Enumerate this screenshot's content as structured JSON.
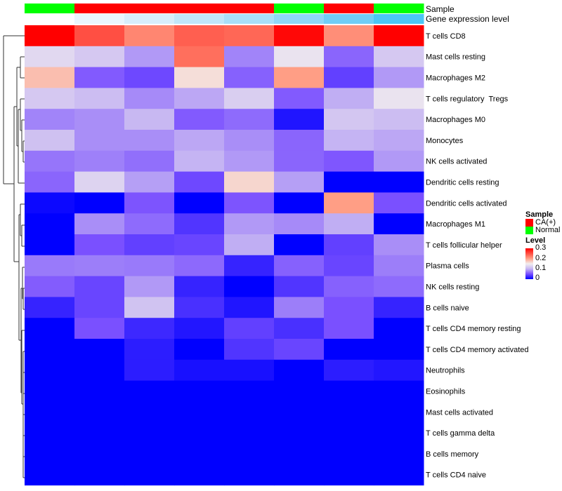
{
  "chart_data": {
    "type": "heatmap",
    "title": "",
    "annotation_labels": {
      "sample": "Sample",
      "gene": "Gene expression level"
    },
    "sample_groups": [
      "Normal",
      "CA(+)",
      "CA(+)",
      "CA(+)",
      "CA(+)",
      "Normal",
      "CA(+)",
      "Normal"
    ],
    "gene_expression_colors": [
      "#ffffff",
      "#eaf6fd",
      "#d8eefb",
      "#c1e7fa",
      "#a9dff9",
      "#8fd7f7",
      "#70cef6",
      "#4bc6f5"
    ],
    "rows": [
      "T cells CD8",
      "Mast cells resting",
      "Macrophages M2",
      "T cells regulatory  Tregs",
      "Macrophages M0",
      "Monocytes",
      "NK cells activated",
      "Dendritic cells resting",
      "Dendritic cells activated",
      "Macrophages M1",
      "T cells follicular helper",
      "Plasma cells",
      "NK cells resting",
      "B cells naive",
      "T cells CD4 memory resting",
      "T cells CD4 memory activated",
      "Neutrophils",
      "Eosinophils",
      "Mast cells activated",
      "T cells gamma delta",
      "B cells memory",
      "T cells CD4 naive"
    ],
    "values": [
      [
        0.3,
        0.25,
        0.215,
        0.24,
        0.235,
        0.295,
        0.21,
        0.3
      ],
      [
        0.13,
        0.115,
        0.085,
        0.23,
        0.075,
        0.14,
        0.06,
        0.115
      ],
      [
        0.18,
        0.055,
        0.045,
        0.16,
        0.058,
        0.2,
        0.04,
        0.085
      ],
      [
        0.115,
        0.105,
        0.078,
        0.092,
        0.12,
        0.055,
        0.095,
        0.14
      ],
      [
        0.075,
        0.08,
        0.1,
        0.055,
        0.063,
        0.013,
        0.113,
        0.105
      ],
      [
        0.108,
        0.08,
        0.08,
        0.092,
        0.08,
        0.06,
        0.098,
        0.092
      ],
      [
        0.068,
        0.073,
        0.065,
        0.098,
        0.085,
        0.06,
        0.053,
        0.085
      ],
      [
        0.06,
        0.125,
        0.088,
        0.045,
        0.165,
        0.088,
        0.0,
        0.0
      ],
      [
        0.005,
        0.0,
        0.052,
        0.0,
        0.052,
        0.0,
        0.2,
        0.05
      ],
      [
        0.0,
        0.08,
        0.063,
        0.033,
        0.085,
        0.078,
        0.095,
        0.0
      ],
      [
        0.0,
        0.05,
        0.04,
        0.043,
        0.095,
        0.0,
        0.04,
        0.08
      ],
      [
        0.07,
        0.072,
        0.07,
        0.062,
        0.022,
        0.058,
        0.043,
        0.072
      ],
      [
        0.056,
        0.043,
        0.085,
        0.022,
        0.0,
        0.033,
        0.058,
        0.063
      ],
      [
        0.022,
        0.043,
        0.11,
        0.03,
        0.013,
        0.072,
        0.05,
        0.022
      ],
      [
        0.0,
        0.05,
        0.025,
        0.014,
        0.04,
        0.03,
        0.05,
        0.0
      ],
      [
        0.0,
        0.0,
        0.018,
        0.0,
        0.033,
        0.043,
        0.0,
        0.0
      ],
      [
        0.0,
        0.0,
        0.018,
        0.01,
        0.01,
        0.0,
        0.018,
        0.014
      ],
      [
        0,
        0,
        0,
        0,
        0,
        0,
        0,
        0
      ],
      [
        0,
        0,
        0,
        0,
        0,
        0,
        0,
        0
      ],
      [
        0,
        0,
        0,
        0,
        0,
        0,
        0,
        0
      ],
      [
        0,
        0,
        0,
        0,
        0,
        0,
        0,
        0
      ],
      [
        0,
        0,
        0,
        0,
        0,
        0,
        0,
        0
      ]
    ],
    "color_range": [
      0,
      0.3
    ],
    "colors": {
      "low": "#0000ff",
      "mid": "#f2eeee",
      "high": "#ff0000",
      "CA(+)": "#ff0000",
      "Normal": "#00ff00"
    },
    "legend": {
      "sample_title": "Sample",
      "sample_items": [
        "CA(+)",
        "Normal"
      ],
      "level_title": "Level",
      "level_ticks": [
        "0.3",
        "0.2",
        "0.1",
        "0"
      ]
    }
  }
}
